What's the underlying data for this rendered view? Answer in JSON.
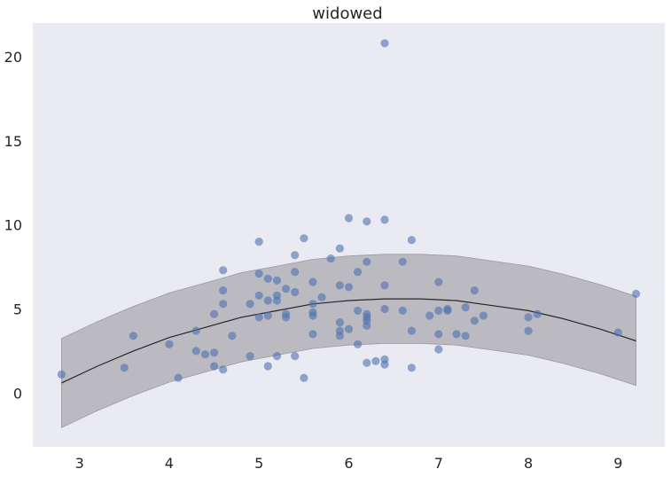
{
  "chart_data": {
    "type": "scatter",
    "title": "widowed",
    "xlabel": "",
    "ylabel": "",
    "xlim": [
      2.48,
      9.52
    ],
    "ylim": [
      -3.2,
      22.0
    ],
    "xticks": [
      3,
      4,
      5,
      6,
      7,
      8,
      9
    ],
    "yticks": [
      0,
      5,
      10,
      15,
      20
    ],
    "grid": false,
    "colors": {
      "background": "#eaeaf2",
      "points": "#4c72b0",
      "band": "#bbbac0",
      "band_edge": "#9a9aa2",
      "fit_line": "#262626"
    },
    "points": [
      [
        2.8,
        1.1
      ],
      [
        3.5,
        1.5
      ],
      [
        3.6,
        3.4
      ],
      [
        4.0,
        2.9
      ],
      [
        4.1,
        0.9
      ],
      [
        4.3,
        3.7
      ],
      [
        4.3,
        2.5
      ],
      [
        4.4,
        2.3
      ],
      [
        4.5,
        4.7
      ],
      [
        4.5,
        2.4
      ],
      [
        4.5,
        1.6
      ],
      [
        4.6,
        7.3
      ],
      [
        4.6,
        6.1
      ],
      [
        4.6,
        5.3
      ],
      [
        4.6,
        1.4
      ],
      [
        4.7,
        3.4
      ],
      [
        4.9,
        5.3
      ],
      [
        4.9,
        2.2
      ],
      [
        5.0,
        9.0
      ],
      [
        5.0,
        7.1
      ],
      [
        5.0,
        5.8
      ],
      [
        5.0,
        4.5
      ],
      [
        5.1,
        6.8
      ],
      [
        5.1,
        5.5
      ],
      [
        5.1,
        4.6
      ],
      [
        5.1,
        1.6
      ],
      [
        5.2,
        6.7
      ],
      [
        5.2,
        5.8
      ],
      [
        5.2,
        5.5
      ],
      [
        5.2,
        2.2
      ],
      [
        5.3,
        6.2
      ],
      [
        5.3,
        4.7
      ],
      [
        5.3,
        4.5
      ],
      [
        5.4,
        8.2
      ],
      [
        5.4,
        7.2
      ],
      [
        5.4,
        6.0
      ],
      [
        5.4,
        2.2
      ],
      [
        5.5,
        9.2
      ],
      [
        5.5,
        0.9
      ],
      [
        5.6,
        6.6
      ],
      [
        5.6,
        5.3
      ],
      [
        5.6,
        4.8
      ],
      [
        5.6,
        4.6
      ],
      [
        5.6,
        3.5
      ],
      [
        5.7,
        5.7
      ],
      [
        5.8,
        8.0
      ],
      [
        5.9,
        8.6
      ],
      [
        5.9,
        6.4
      ],
      [
        5.9,
        4.2
      ],
      [
        5.9,
        3.7
      ],
      [
        5.9,
        3.4
      ],
      [
        6.0,
        10.4
      ],
      [
        6.0,
        6.3
      ],
      [
        6.0,
        3.8
      ],
      [
        6.1,
        7.2
      ],
      [
        6.1,
        4.9
      ],
      [
        6.1,
        2.9
      ],
      [
        6.2,
        10.2
      ],
      [
        6.2,
        7.8
      ],
      [
        6.2,
        4.7
      ],
      [
        6.2,
        4.5
      ],
      [
        6.2,
        4.3
      ],
      [
        6.2,
        4.0
      ],
      [
        6.2,
        1.8
      ],
      [
        6.3,
        1.9
      ],
      [
        6.4,
        20.8
      ],
      [
        6.4,
        10.3
      ],
      [
        6.4,
        6.4
      ],
      [
        6.4,
        5.0
      ],
      [
        6.4,
        2.0
      ],
      [
        6.4,
        1.7
      ],
      [
        6.6,
        7.8
      ],
      [
        6.6,
        4.9
      ],
      [
        6.7,
        9.1
      ],
      [
        6.7,
        3.7
      ],
      [
        6.7,
        1.5
      ],
      [
        6.9,
        4.6
      ],
      [
        7.0,
        6.6
      ],
      [
        7.0,
        4.9
      ],
      [
        7.0,
        3.5
      ],
      [
        7.0,
        2.6
      ],
      [
        7.1,
        5.0
      ],
      [
        7.1,
        4.9
      ],
      [
        7.2,
        3.5
      ],
      [
        7.3,
        5.1
      ],
      [
        7.3,
        3.4
      ],
      [
        7.4,
        6.1
      ],
      [
        7.4,
        4.3
      ],
      [
        7.5,
        4.6
      ],
      [
        8.0,
        4.5
      ],
      [
        8.0,
        3.7
      ],
      [
        8.1,
        4.7
      ],
      [
        9.0,
        3.6
      ],
      [
        9.2,
        5.9
      ]
    ],
    "fit": {
      "x": [
        2.8,
        3.2,
        3.6,
        4.0,
        4.4,
        4.8,
        5.2,
        5.6,
        6.0,
        6.4,
        6.8,
        7.2,
        7.6,
        8.0,
        8.4,
        8.8,
        9.2
      ],
      "y": [
        0.6,
        1.6,
        2.5,
        3.3,
        3.9,
        4.5,
        4.9,
        5.3,
        5.5,
        5.6,
        5.6,
        5.5,
        5.2,
        4.9,
        4.4,
        3.8,
        3.1
      ],
      "band_half_width": 2.65
    }
  }
}
